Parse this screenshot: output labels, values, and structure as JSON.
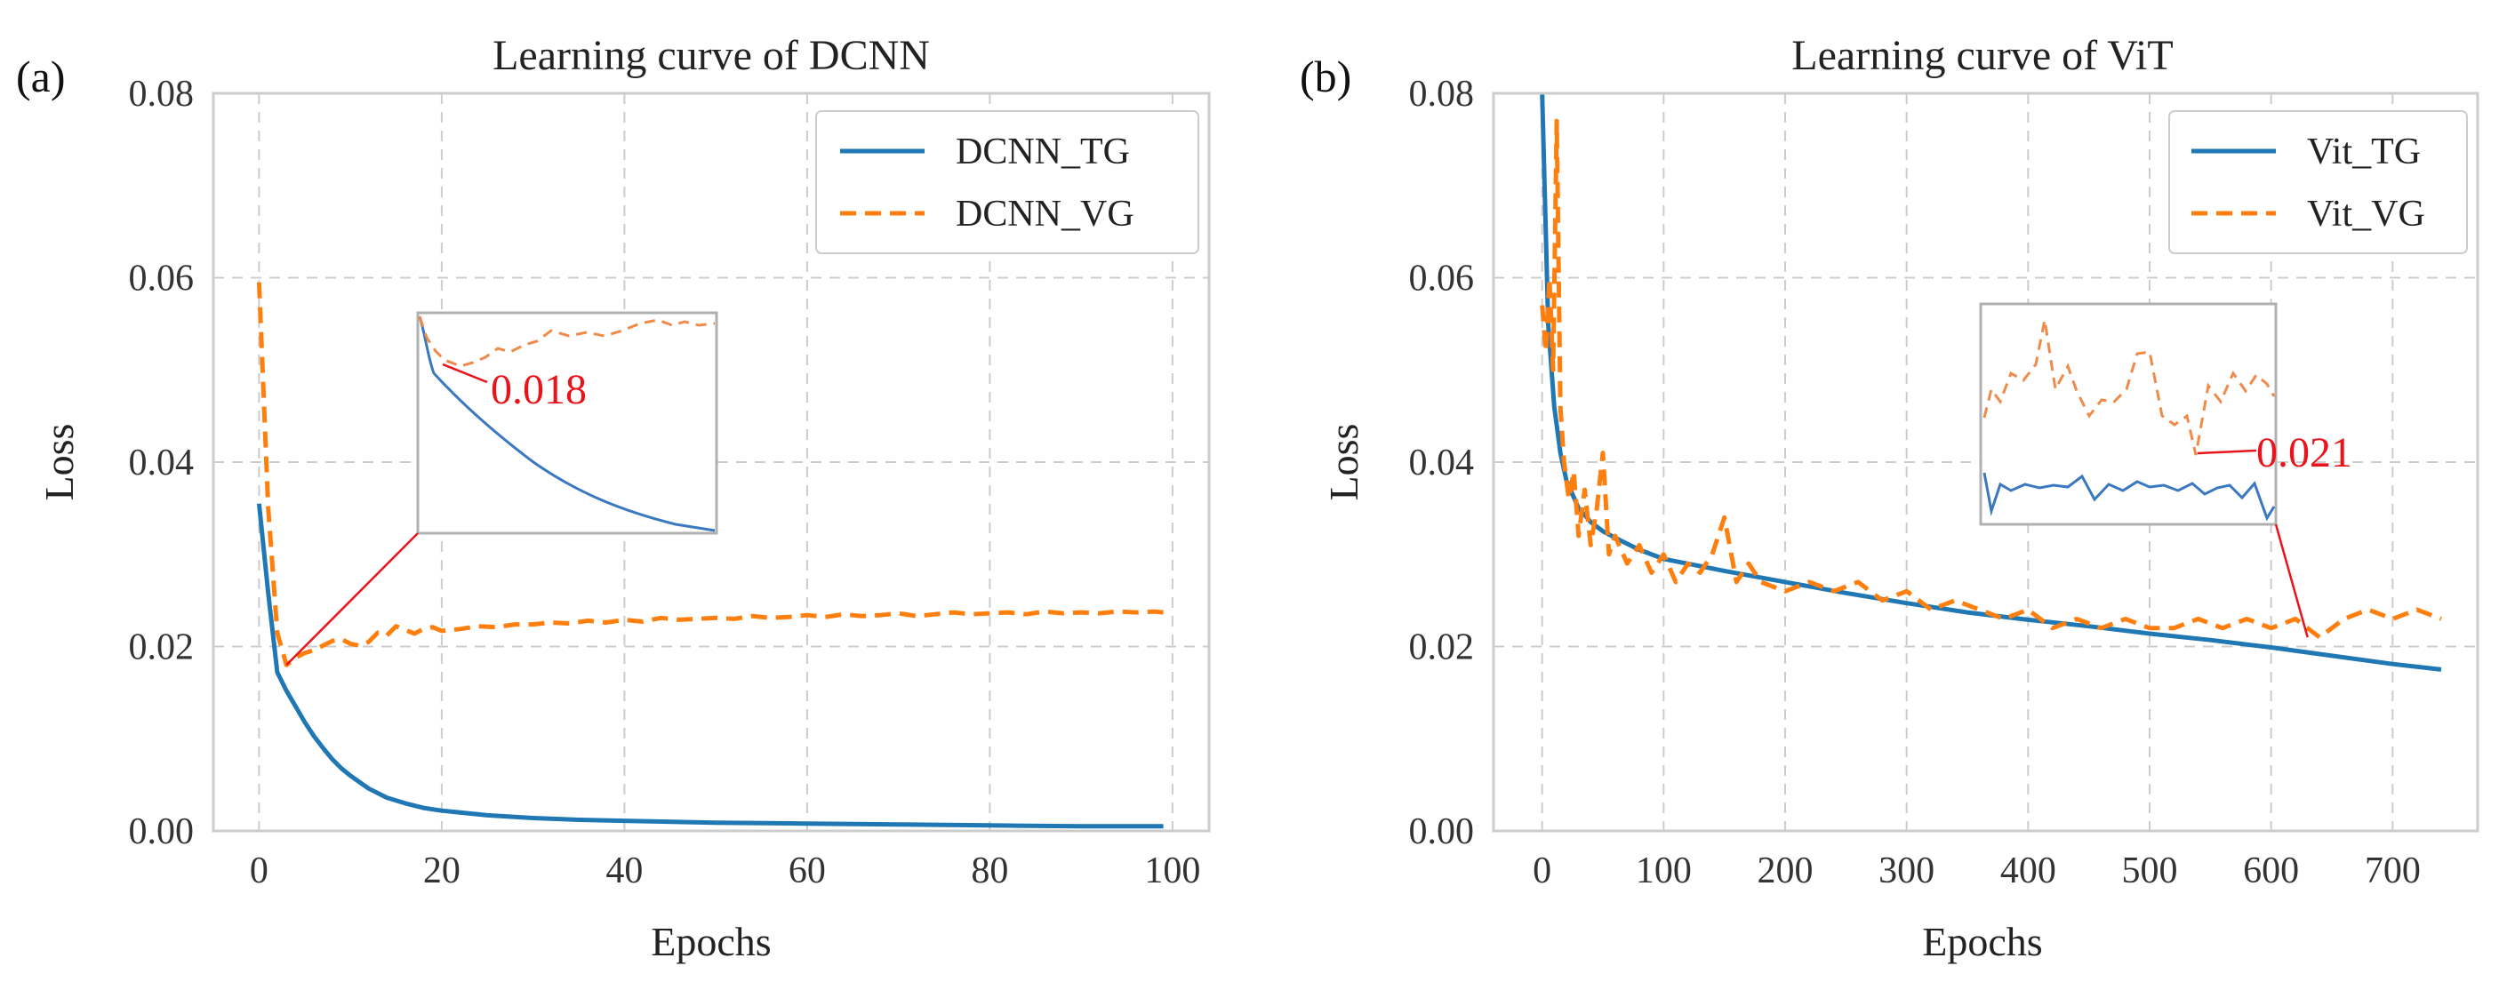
{
  "figure": {
    "panels": [
      "(a)",
      "(b)"
    ],
    "colors": {
      "train": "#1f77b4",
      "val": "#ff7f0e",
      "annotation": "#e8141b",
      "grid": "#cccccc"
    }
  },
  "chart_data": [
    {
      "type": "line",
      "panel": "(a)",
      "title": "Learning curve of DCNN",
      "xlabel": "Epochs",
      "ylabel": "Loss",
      "xlim": [
        -5,
        104
      ],
      "ylim": [
        0,
        0.08
      ],
      "xticks": [
        0,
        20,
        40,
        60,
        80,
        100
      ],
      "yticks": [
        0.0,
        0.02,
        0.04,
        0.06,
        0.08
      ],
      "xtick_labels": [
        "0",
        "20",
        "40",
        "60",
        "80",
        "100"
      ],
      "ytick_labels": [
        "0.00",
        "0.02",
        "0.04",
        "0.06",
        "0.08"
      ],
      "grid": true,
      "legend": "top-right",
      "series": [
        {
          "name": "DCNN_TG",
          "style": "solid",
          "x": [
            0,
            1,
            2,
            3,
            4,
            5,
            6,
            7,
            8,
            9,
            10,
            12,
            14,
            16,
            18,
            20,
            25,
            30,
            35,
            40,
            50,
            60,
            70,
            80,
            90,
            99
          ],
          "values": [
            0.0355,
            0.0258,
            0.0172,
            0.0152,
            0.0135,
            0.0118,
            0.0103,
            0.009,
            0.0078,
            0.0068,
            0.006,
            0.0046,
            0.0036,
            0.003,
            0.0025,
            0.0022,
            0.0017,
            0.0014,
            0.0012,
            0.0011,
            0.0009,
            0.0008,
            0.0007,
            0.0006,
            0.0005,
            0.0005
          ]
        },
        {
          "name": "DCNN_VG",
          "style": "dashed",
          "x": [
            0,
            1,
            2,
            3,
            4,
            5,
            6,
            7,
            8,
            9,
            10,
            11,
            12,
            13,
            14,
            15,
            16,
            17,
            18,
            19,
            20,
            22,
            24,
            26,
            28,
            30,
            32,
            34,
            36,
            38,
            40,
            42,
            44,
            46,
            48,
            50,
            52,
            54,
            56,
            58,
            60,
            62,
            64,
            66,
            68,
            70,
            72,
            74,
            76,
            78,
            80,
            82,
            84,
            86,
            88,
            90,
            92,
            94,
            96,
            98,
            99
          ],
          "values": [
            0.0595,
            0.035,
            0.0215,
            0.018,
            0.0188,
            0.0193,
            0.0196,
            0.0201,
            0.0206,
            0.0208,
            0.0203,
            0.0201,
            0.0205,
            0.0215,
            0.0212,
            0.0222,
            0.0218,
            0.0214,
            0.0219,
            0.0221,
            0.0217,
            0.0219,
            0.0222,
            0.0221,
            0.0224,
            0.0224,
            0.0226,
            0.0225,
            0.0228,
            0.0226,
            0.0229,
            0.0227,
            0.0231,
            0.0229,
            0.023,
            0.0231,
            0.023,
            0.0233,
            0.0231,
            0.0232,
            0.0234,
            0.0232,
            0.0235,
            0.0233,
            0.0234,
            0.0236,
            0.0233,
            0.0235,
            0.0237,
            0.0235,
            0.0236,
            0.0237,
            0.0235,
            0.0238,
            0.0236,
            0.0237,
            0.0236,
            0.0238,
            0.0237,
            0.0238,
            0.0237
          ]
        }
      ],
      "annotation": {
        "text": "0.018",
        "x": 3,
        "y": 0.018
      }
    },
    {
      "type": "line",
      "panel": "(b)",
      "title": "Learning curve of ViT",
      "xlabel": "Epochs",
      "ylabel": "Loss",
      "xlim": [
        -40,
        770
      ],
      "ylim": [
        0,
        0.08
      ],
      "xticks": [
        0,
        100,
        200,
        300,
        400,
        500,
        600,
        700
      ],
      "yticks": [
        0.0,
        0.02,
        0.04,
        0.06,
        0.08
      ],
      "xtick_labels": [
        "0",
        "100",
        "200",
        "300",
        "400",
        "500",
        "600",
        "700"
      ],
      "ytick_labels": [
        "0.00",
        "0.02",
        "0.04",
        "0.06",
        "0.08"
      ],
      "grid": true,
      "legend": "top-right",
      "series": [
        {
          "name": "Vit_TG",
          "style": "solid",
          "x": [
            0,
            5,
            10,
            15,
            20,
            30,
            40,
            50,
            60,
            80,
            100,
            150,
            200,
            250,
            300,
            350,
            400,
            450,
            500,
            550,
            600,
            650,
            700,
            740
          ],
          "values": [
            0.08,
            0.055,
            0.046,
            0.041,
            0.038,
            0.035,
            0.0335,
            0.0325,
            0.0318,
            0.0305,
            0.0295,
            0.0282,
            0.027,
            0.0258,
            0.0247,
            0.0237,
            0.0229,
            0.0222,
            0.0214,
            0.0207,
            0.0199,
            0.019,
            0.0181,
            0.0175
          ]
        },
        {
          "name": "Vit_VG",
          "style": "dashed",
          "x": [
            0,
            3,
            6,
            9,
            12,
            15,
            18,
            22,
            26,
            30,
            35,
            40,
            45,
            50,
            55,
            60,
            70,
            80,
            90,
            100,
            110,
            120,
            130,
            140,
            150,
            160,
            170,
            180,
            200,
            220,
            240,
            260,
            280,
            300,
            320,
            340,
            360,
            380,
            400,
            420,
            440,
            460,
            480,
            500,
            520,
            540,
            560,
            580,
            600,
            620,
            640,
            660,
            680,
            700,
            720,
            740
          ],
          "values": [
            0.057,
            0.052,
            0.06,
            0.05,
            0.077,
            0.046,
            0.04,
            0.036,
            0.039,
            0.032,
            0.037,
            0.031,
            0.035,
            0.041,
            0.03,
            0.032,
            0.029,
            0.031,
            0.028,
            0.03,
            0.027,
            0.029,
            0.028,
            0.03,
            0.034,
            0.027,
            0.029,
            0.027,
            0.026,
            0.027,
            0.026,
            0.027,
            0.025,
            0.026,
            0.024,
            0.025,
            0.024,
            0.023,
            0.024,
            0.022,
            0.023,
            0.022,
            0.023,
            0.022,
            0.022,
            0.023,
            0.022,
            0.023,
            0.022,
            0.023,
            0.021,
            0.023,
            0.024,
            0.023,
            0.024,
            0.023
          ]
        }
      ],
      "annotation": {
        "text": "0.021",
        "x": 630,
        "y": 0.021
      }
    }
  ]
}
